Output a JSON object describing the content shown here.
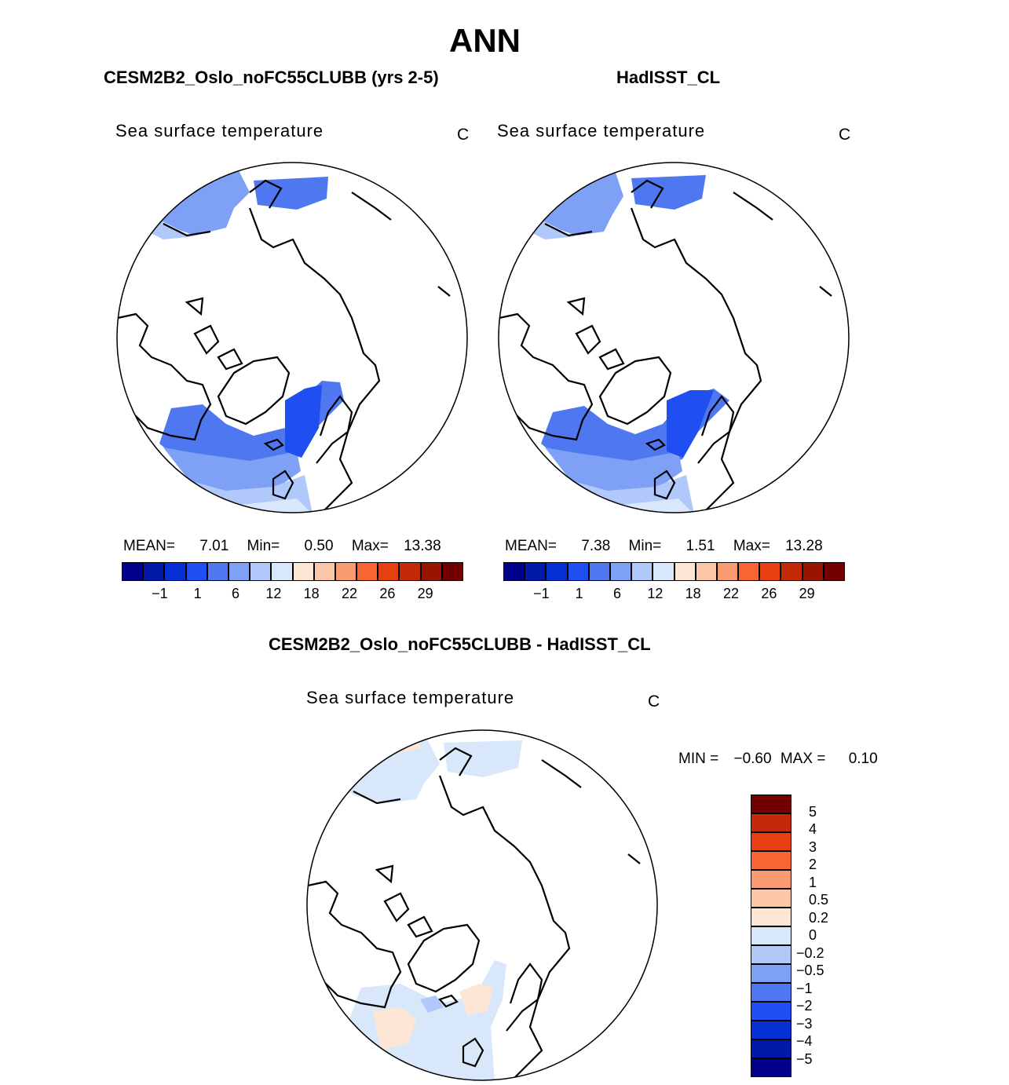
{
  "title": "ANN",
  "panels": {
    "model": {
      "header": "CESM2B2_Oslo_noFC55CLUBB (yrs 2-5)",
      "plot_title": "Sea surface temperature",
      "units": "C",
      "stats": {
        "mean_label": "MEAN=",
        "mean": "7.01",
        "min_label": "Min=",
        "min": "0.50",
        "max_label": "Max=",
        "max": "13.38"
      }
    },
    "obs": {
      "header": "HadISST_CL",
      "plot_title": "Sea surface temperature",
      "units": "C",
      "stats": {
        "mean_label": "MEAN=",
        "mean": "7.38",
        "min_label": "Min=",
        "min": "1.51",
        "max_label": "Max=",
        "max": "13.28"
      }
    },
    "diff": {
      "header": "CESM2B2_Oslo_noFC55CLUBB - HadISST_CL",
      "plot_title": "Sea surface temperature",
      "units": "C",
      "stats": {
        "min_label": "MIN =",
        "min": "−0.60",
        "max_label": "MAX =",
        "max": "0.10"
      }
    }
  },
  "abs_colorbar": {
    "colors": [
      "#00008a",
      "#0019a8",
      "#0530d6",
      "#1f4ff0",
      "#4f78f0",
      "#7ea0f5",
      "#b0c8fa",
      "#d8e8fa",
      "#fde6d4",
      "#fcc6a8",
      "#fa9a70",
      "#f76535",
      "#e64010",
      "#c42a08",
      "#9a1500",
      "#730000"
    ],
    "labels": [
      "−1",
      "1",
      "6",
      "12",
      "18",
      "22",
      "26",
      "29"
    ]
  },
  "diff_colorbar": {
    "colors": [
      "#00008a",
      "#0019a8",
      "#0530d6",
      "#1f4ff0",
      "#4f78f0",
      "#7ea0f5",
      "#b0c8fa",
      "#d8e8fa",
      "#fde6d4",
      "#fcc6a8",
      "#fa9a70",
      "#f76535",
      "#e64010",
      "#c42a08",
      "#730000"
    ],
    "labels": [
      "−5",
      "−4",
      "−3",
      "−2",
      "−1",
      "−0.5",
      "−0.2",
      "0",
      "0.2",
      "0.5",
      "1",
      "2",
      "3",
      "4",
      "5"
    ]
  }
}
